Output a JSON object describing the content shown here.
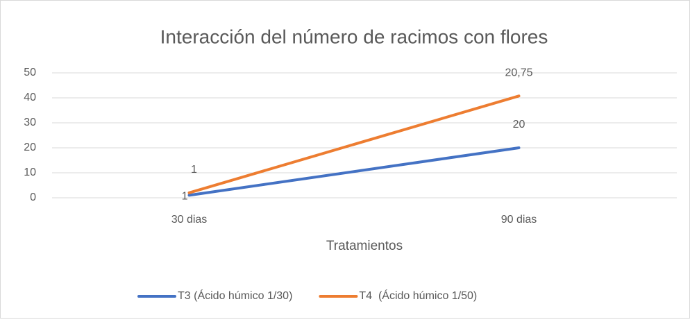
{
  "chart_data": {
    "type": "line",
    "stacked": true,
    "title": "Interacción del número de racimos con flores",
    "x_label": "Tratamientos",
    "categories": [
      "30 dias",
      "90 dias"
    ],
    "series": [
      {
        "name": "T3 (Ácido húmico 1/30)",
        "color": "#4472c4",
        "values": [
          1,
          20
        ]
      },
      {
        "name": "T4  (Ácido húmico 1/50)",
        "color": "#ed7d31",
        "values": [
          1,
          20.75
        ],
        "value_labels": [
          "1",
          "20,75"
        ]
      }
    ],
    "ylim": [
      0,
      50
    ],
    "yticks": [
      0,
      10,
      20,
      30,
      40,
      50
    ],
    "grid": true,
    "legend": "bottom"
  }
}
